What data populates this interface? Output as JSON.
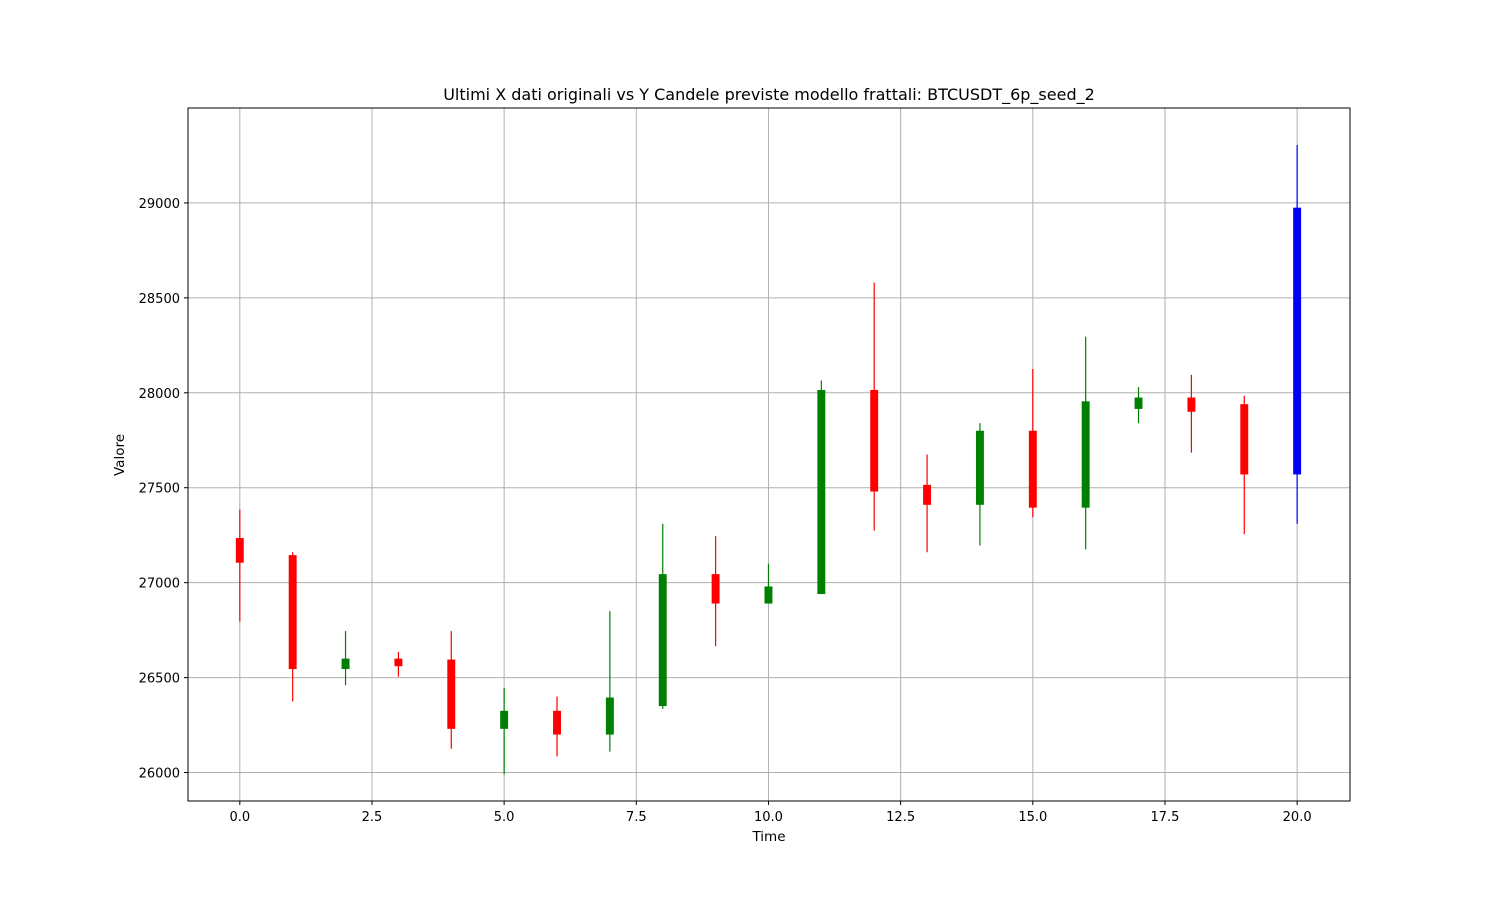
{
  "chart_data": {
    "type": "candlestick",
    "title": "Ultimi X dati originali vs Y Candele previste modello frattali: BTCUSDT_6p_seed_2",
    "xlabel": "Time",
    "ylabel": "Valore",
    "xlim": [
      -0.98,
      21.0
    ],
    "ylim": [
      25850,
      29500
    ],
    "grid": true,
    "x_ticks": [
      0.0,
      2.5,
      5.0,
      7.5,
      10.0,
      12.5,
      15.0,
      17.5,
      20.0
    ],
    "x_tick_labels": [
      "0.0",
      "2.5",
      "5.0",
      "7.5",
      "10.0",
      "12.5",
      "15.0",
      "17.5",
      "20.0"
    ],
    "y_ticks": [
      26000,
      26500,
      27000,
      27500,
      28000,
      28500,
      29000
    ],
    "y_tick_labels": [
      "26000",
      "26500",
      "27000",
      "27500",
      "28000",
      "28500",
      "29000"
    ],
    "colors": {
      "up": "#008000",
      "down": "#ff0000",
      "forecast": "#0000ff",
      "grid": "#b0b0b0"
    },
    "candles": [
      {
        "t": 0,
        "open": 27235,
        "close": 27105,
        "high": 27385,
        "low": 26795,
        "color": "down"
      },
      {
        "t": 1,
        "open": 27145,
        "close": 26545,
        "high": 27160,
        "low": 26375,
        "color": "down"
      },
      {
        "t": 2,
        "open": 26545,
        "close": 26600,
        "high": 26745,
        "low": 26460,
        "color": "up"
      },
      {
        "t": 3,
        "open": 26600,
        "close": 26560,
        "high": 26635,
        "low": 26505,
        "color": "down"
      },
      {
        "t": 4,
        "open": 26595,
        "close": 26230,
        "high": 26745,
        "low": 26125,
        "color": "down"
      },
      {
        "t": 5,
        "open": 26230,
        "close": 26325,
        "high": 26445,
        "low": 25990,
        "color": "up"
      },
      {
        "t": 6,
        "open": 26325,
        "close": 26200,
        "high": 26400,
        "low": 26085,
        "color": "down"
      },
      {
        "t": 7,
        "open": 26200,
        "close": 26395,
        "high": 26850,
        "low": 26110,
        "color": "up"
      },
      {
        "t": 8,
        "open": 26350,
        "close": 27045,
        "high": 27310,
        "low": 26335,
        "color": "up"
      },
      {
        "t": 9,
        "open": 27045,
        "close": 26890,
        "high": 27245,
        "low": 26665,
        "color": "down"
      },
      {
        "t": 10,
        "open": 26890,
        "close": 26980,
        "high": 27100,
        "low": 26890,
        "color": "up"
      },
      {
        "t": 11,
        "open": 26940,
        "close": 28015,
        "high": 28065,
        "low": 26940,
        "color": "up"
      },
      {
        "t": 12,
        "open": 28015,
        "close": 27480,
        "high": 28580,
        "low": 27275,
        "color": "down"
      },
      {
        "t": 13,
        "open": 27515,
        "close": 27410,
        "high": 27675,
        "low": 27160,
        "color": "down"
      },
      {
        "t": 14,
        "open": 27410,
        "close": 27800,
        "high": 27840,
        "low": 27195,
        "color": "up"
      },
      {
        "t": 15,
        "open": 27800,
        "close": 27395,
        "high": 28125,
        "low": 27345,
        "color": "down"
      },
      {
        "t": 16,
        "open": 27395,
        "close": 27955,
        "high": 28295,
        "low": 27175,
        "color": "up"
      },
      {
        "t": 17,
        "open": 27915,
        "close": 27975,
        "high": 28030,
        "low": 27840,
        "color": "up"
      },
      {
        "t": 18,
        "open": 27975,
        "close": 27900,
        "high": 28095,
        "low": 27685,
        "color": "down"
      },
      {
        "t": 19,
        "open": 27940,
        "close": 27570,
        "high": 27985,
        "low": 27255,
        "color": "down"
      },
      {
        "t": 20,
        "open": 27570,
        "close": 28975,
        "high": 29305,
        "low": 27310,
        "color": "forecast"
      }
    ]
  }
}
